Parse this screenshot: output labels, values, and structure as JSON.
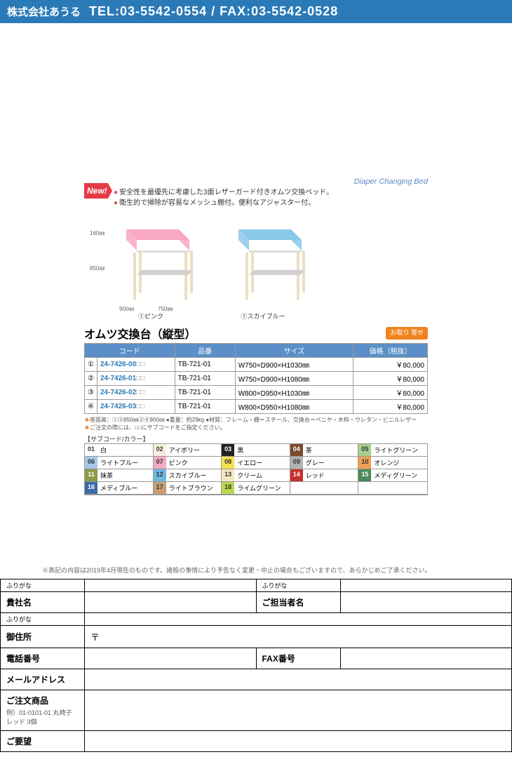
{
  "header": {
    "company": "株式会社あうる",
    "contact": "TEL:03-5542-0554 / FAX:03-5542-0528"
  },
  "product": {
    "subtitle": "Diaper Changing Bed",
    "new_label": "New!",
    "bullet1": "安全性を最優先に考慮した3面レザーガード付きオムツ交換ベッド。",
    "bullet2": "衛生的で掃除が容易なメッシュ棚付。便利なアジャスター付。",
    "caption_pink": "①ピンク",
    "caption_blue": "①スカイブルー",
    "dim_h1": "160㎜",
    "dim_h2": "850㎜",
    "dim_d": "900㎜",
    "dim_w": "750㎜",
    "title": "オムツ交換台（縦型）",
    "order_badge": "お取り\n寄せ"
  },
  "spec": {
    "headers": {
      "code": "コード",
      "part": "品番",
      "size": "サイズ",
      "price": "価格（税抜）"
    },
    "rows": [
      {
        "idx": "①",
        "code": "24-7426-00",
        "part": "TB-721-01",
        "size": "W750×D900×H1030㎜",
        "price": "￥80,000"
      },
      {
        "idx": "②",
        "code": "24-7426-01",
        "part": "TB-721-01",
        "size": "W750×D900×H1080㎜",
        "price": "￥80,000"
      },
      {
        "idx": "③",
        "code": "24-7426-02",
        "part": "TB-721-01",
        "size": "W800×D950×H1030㎜",
        "price": "￥80,000"
      },
      {
        "idx": "④",
        "code": "24-7426-03",
        "part": "TB-721-01",
        "size": "W800×D950×H1080㎜",
        "price": "￥80,000"
      }
    ]
  },
  "notes": {
    "n1": "座面高：①③850㎜②④900㎜ ●重量：約29kg ●材質：フレーム・棚＝スチール、交換台＝ベニヤ・木枠・ウレタン・ビニルレザー",
    "n2": "ご注文の際には、□□にサブコードをご指定ください。",
    "subcode_label": "【サブコード/カラー】"
  },
  "colors": [
    {
      "num": "01",
      "name": "白",
      "bg": "#ffffff",
      "fg": "#333"
    },
    {
      "num": "02",
      "name": "アイボリー",
      "bg": "#f5f0dc",
      "fg": "#333"
    },
    {
      "num": "03",
      "name": "黒",
      "bg": "#222222",
      "fg": "#fff"
    },
    {
      "num": "04",
      "name": "茶",
      "bg": "#7a4a2a",
      "fg": "#fff"
    },
    {
      "num": "05",
      "name": "ライトグリーン",
      "bg": "#a8d08d",
      "fg": "#333"
    },
    {
      "num": "06",
      "name": "ライトブルー",
      "bg": "#a8c8e8",
      "fg": "#333"
    },
    {
      "num": "07",
      "name": "ピンク",
      "bg": "#f5a8c0",
      "fg": "#333"
    },
    {
      "num": "08",
      "name": "イエロー",
      "bg": "#f5e050",
      "fg": "#333"
    },
    {
      "num": "09",
      "name": "グレー",
      "bg": "#b0b0b0",
      "fg": "#333"
    },
    {
      "num": "10",
      "name": "オレンジ",
      "bg": "#f0a050",
      "fg": "#333"
    },
    {
      "num": "11",
      "name": "抹茶",
      "bg": "#8a9a4a",
      "fg": "#fff"
    },
    {
      "num": "12",
      "name": "スカイブルー",
      "bg": "#6ab8e0",
      "fg": "#333"
    },
    {
      "num": "13",
      "name": "クリーム",
      "bg": "#f5e8c0",
      "fg": "#333"
    },
    {
      "num": "14",
      "name": "レッド",
      "bg": "#c83030",
      "fg": "#fff"
    },
    {
      "num": "15",
      "name": "メディグリーン",
      "bg": "#4a8a5a",
      "fg": "#fff"
    },
    {
      "num": "16",
      "name": "メディブルー",
      "bg": "#3a6aa8",
      "fg": "#fff"
    },
    {
      "num": "17",
      "name": "ライトブラウン",
      "bg": "#c8a070",
      "fg": "#333"
    },
    {
      "num": "18",
      "name": "ライムグリーン",
      "bg": "#b8d850",
      "fg": "#333"
    }
  ],
  "disclaimer": "※表記の内容は2019年4月現在のものです。諸般の事情により予告なく変更・中止の場合もございますので、あらかじめご了承ください。",
  "form": {
    "furigana": "ふりがな",
    "company": "貴社名",
    "contact_person": "ご担当者名",
    "address": "御住所",
    "postal_mark": "〒",
    "tel": "電話番号",
    "fax": "FAX番号",
    "email": "メールアドレス",
    "order": "ご注文商品",
    "order_example": "例）01-0101-01 丸椅子 レッド 3個",
    "request": "ご要望"
  },
  "svg": {
    "pink_top": "#f8a8c0",
    "blue_top": "#88c8e8",
    "frame": "#e8e0c0",
    "shelf": "#d0d0d0"
  }
}
